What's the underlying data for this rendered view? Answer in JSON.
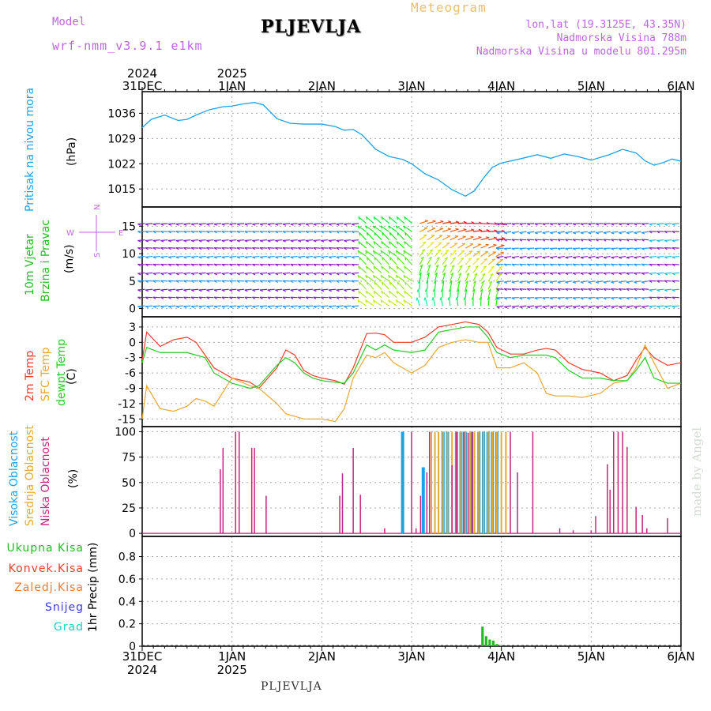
{
  "header": {
    "model_label": "Model",
    "model_name": "wrf-nmm_v3.9.1 e1km",
    "station": "PLJEVLJA",
    "meteogram": "Meteogram",
    "lonlat": "lon,lat (19.3125E, 43.35N)",
    "altitude": "Nadmorska Visina 788m",
    "model_altitude": "Nadmorska Visina u modelu 801.295m"
  },
  "footer": {
    "station": "PLJEVLJA",
    "watermark": "made by Angel"
  },
  "time_axis": {
    "top_years": [
      "2024",
      "2025"
    ],
    "bottom_years": [
      "2024",
      "2025"
    ],
    "days": [
      "31DEC",
      "1JAN",
      "2JAN",
      "3JAN",
      "4JAN",
      "5JAN",
      "6JAN"
    ]
  },
  "panel_labels": {
    "pressure": "Pritisak na nivou mora",
    "pressure_unit": "(hPa)",
    "wind1": "10m Vjetar",
    "wind2": "Brzina i Pravac",
    "wind_unit": "(m/s)",
    "compass_n": "N",
    "compass_s": "S",
    "compass_w": "W",
    "compass_e": "E",
    "temp1": "2m Temp",
    "temp2": "SFC Temp",
    "temp3": "dewpt Temp",
    "temp_unit": "(C)",
    "cloud1": "Visoka Oblacnost",
    "cloud2": "Srednja Oblacnost",
    "cloud3": "Niska Oblacnost",
    "cloud_unit": "(%)",
    "precip_axis": "1hr Precip (mm)",
    "precip_legend": [
      "Ukupna Kisa",
      "Konvek.Kisa",
      "Zaledj.Kisa",
      "Snijeg",
      "Grad"
    ]
  },
  "colors": {
    "pressure": "#1aa3e8",
    "t2m": "#f03a2a",
    "tsfc": "#e8a830",
    "dewpt": "#22cc22",
    "high_cloud": "#1aa3e8",
    "mid_cloud": "#e8a830",
    "low_cloud": "#c8237e",
    "legend": [
      "#22bb22",
      "#f03a2a",
      "#f07a30",
      "#3a3ae8",
      "#22cccc"
    ],
    "label_magenta": "#bb66dd"
  },
  "chart_data": [
    {
      "type": "line",
      "name": "pressure",
      "ylabel": "(hPa)",
      "yticks": [
        1015,
        1022,
        1029,
        1036
      ],
      "ylim": [
        1010,
        1042
      ],
      "xlim": [
        0,
        6
      ],
      "x": [
        0,
        0.1,
        0.25,
        0.4,
        0.5,
        0.6,
        0.75,
        0.9,
        1.0,
        1.1,
        1.25,
        1.35,
        1.5,
        1.65,
        1.8,
        2.0,
        2.15,
        2.25,
        2.35,
        2.45,
        2.6,
        2.75,
        2.9,
        3.0,
        3.15,
        3.3,
        3.45,
        3.6,
        3.7,
        3.8,
        3.9,
        4.0,
        4.2,
        4.4,
        4.55,
        4.7,
        4.85,
        5.0,
        5.2,
        5.35,
        5.5,
        5.6,
        5.7,
        5.8,
        5.9,
        6.0
      ],
      "y": [
        1032,
        1034.3,
        1035.5,
        1034,
        1034.3,
        1035.5,
        1037,
        1037.8,
        1038,
        1038.5,
        1039,
        1038.3,
        1034.5,
        1033.2,
        1033,
        1033,
        1032.3,
        1031.3,
        1031.5,
        1030,
        1026,
        1024,
        1023.2,
        1022,
        1019.2,
        1017.5,
        1014.8,
        1013,
        1014.5,
        1018,
        1021,
        1022.2,
        1023.3,
        1024.5,
        1023.5,
        1024.7,
        1024,
        1023,
        1024.5,
        1026,
        1025,
        1022.8,
        1021.6,
        1022.3,
        1023.3,
        1022.7
      ]
    },
    {
      "type": "scatter",
      "name": "wind",
      "ylabel": "(m/s)",
      "yticks": [
        0,
        5,
        10,
        15
      ],
      "ylim": [
        -1.5,
        18.5
      ],
      "xlim": [
        0,
        6
      ]
    },
    {
      "type": "line",
      "name": "temperature",
      "ylabel": "(C)",
      "yticks": [
        3,
        0,
        -3,
        -6,
        -9,
        -12,
        -15
      ],
      "ylim": [
        -16.5,
        5
      ],
      "xlim": [
        0,
        6
      ],
      "series": [
        {
          "x": [
            0,
            0.05,
            0.2,
            0.35,
            0.5,
            0.6,
            0.7,
            0.8,
            1.0,
            1.2,
            1.3,
            1.5,
            1.6,
            1.7,
            1.8,
            1.9,
            2.0,
            2.15,
            2.25,
            2.35,
            2.5,
            2.6,
            2.7,
            2.8,
            3.0,
            3.15,
            3.3,
            3.45,
            3.6,
            3.75,
            3.85,
            3.95,
            4.1,
            4.25,
            4.4,
            4.5,
            4.6,
            4.75,
            4.9,
            5.1,
            5.25,
            5.4,
            5.5,
            5.6,
            5.7,
            5.85,
            6.0
          ],
          "y": [
            -3.5,
            2,
            -0.8,
            0.5,
            1,
            0,
            -2.5,
            -5,
            -7,
            -7.8,
            -9,
            -5,
            -1.5,
            -2.5,
            -5.5,
            -6.5,
            -7,
            -7.5,
            -8.2,
            -5,
            1.7,
            1.8,
            1.5,
            0,
            0,
            1,
            3,
            3.5,
            4,
            3.5,
            2,
            -1,
            -2.3,
            -2.3,
            -1.5,
            -1.2,
            -1.5,
            -4,
            -5.3,
            -6,
            -7.5,
            -6.5,
            -3.5,
            -1,
            -3,
            -4.5,
            -4
          ]
        },
        {
          "x": [
            0,
            0.05,
            0.2,
            0.35,
            0.5,
            0.6,
            0.7,
            0.8,
            1.0,
            1.2,
            1.3,
            1.5,
            1.6,
            1.7,
            1.8,
            1.9,
            2.0,
            2.15,
            2.25,
            2.35,
            2.5,
            2.6,
            2.7,
            2.8,
            3.0,
            3.15,
            3.3,
            3.45,
            3.6,
            3.75,
            3.85,
            3.95,
            4.1,
            4.25,
            4.4,
            4.5,
            4.6,
            4.75,
            4.9,
            5.1,
            5.25,
            5.4,
            5.5,
            5.6,
            5.7,
            5.85,
            6.0
          ],
          "y": [
            -15,
            -8.5,
            -13,
            -13.5,
            -12.5,
            -11,
            -11.5,
            -12.5,
            -7,
            -8.5,
            -9,
            -12,
            -14,
            -14.5,
            -15,
            -15,
            -15,
            -15.5,
            -13,
            -7,
            -2.5,
            -3,
            -2,
            -4,
            -6,
            -4.5,
            -1,
            0,
            0.5,
            0,
            0,
            -5,
            -5,
            -4,
            -6,
            -10,
            -10.5,
            -10.5,
            -10.8,
            -10,
            -8,
            -7.5,
            -5,
            -0.5,
            -4,
            -9,
            -8
          ]
        },
        {
          "x": [
            0,
            0.05,
            0.2,
            0.35,
            0.5,
            0.6,
            0.7,
            0.8,
            1.0,
            1.2,
            1.3,
            1.5,
            1.6,
            1.7,
            1.8,
            1.9,
            2.0,
            2.15,
            2.25,
            2.35,
            2.5,
            2.6,
            2.7,
            2.8,
            3.0,
            3.15,
            3.3,
            3.45,
            3.6,
            3.75,
            3.85,
            3.95,
            4.1,
            4.25,
            4.4,
            4.5,
            4.6,
            4.75,
            4.9,
            5.1,
            5.25,
            5.4,
            5.5,
            5.6,
            5.7,
            5.85,
            6.0
          ],
          "y": [
            -4,
            -1,
            -2,
            -2,
            -2,
            -2.5,
            -3,
            -6,
            -8,
            -9,
            -8.5,
            -4.5,
            -3,
            -4,
            -6,
            -7,
            -7.5,
            -7.8,
            -8,
            -6,
            -0.5,
            -1.5,
            -0.5,
            -1.5,
            -2,
            -1.5,
            2,
            2.5,
            3,
            3,
            1,
            -2,
            -3,
            -2.5,
            -2.5,
            -2.5,
            -3,
            -5.5,
            -7,
            -7,
            -7.5,
            -7.5,
            -5.5,
            -3,
            -7,
            -8,
            -8
          ]
        }
      ]
    },
    {
      "type": "bar",
      "name": "cloud",
      "ylabel": "(%)",
      "yticks": [
        0,
        25,
        50,
        75,
        100
      ],
      "ylim": [
        -3,
        105
      ],
      "xlim": [
        0,
        6
      ],
      "series": [
        {
          "x": [
            2.9,
            3.13,
            3.35,
            3.4,
            3.5,
            3.55,
            3.6,
            3.66,
            3.75,
            3.8,
            3.85,
            3.9,
            3.95
          ],
          "values": [
            100,
            65,
            100,
            100,
            100,
            100,
            100,
            100,
            100,
            100,
            100,
            100,
            100
          ]
        },
        {
          "x": [
            3.22,
            3.26,
            3.3,
            3.35,
            3.4,
            3.45,
            3.5,
            3.55,
            3.6,
            3.65,
            3.7,
            3.75,
            3.8,
            3.85,
            3.9,
            3.95,
            4.0,
            4.05
          ],
          "values": [
            100,
            100,
            100,
            100,
            100,
            100,
            100,
            100,
            100,
            100,
            100,
            100,
            100,
            100,
            100,
            100,
            100,
            100
          ]
        },
        {
          "x": [
            0.87,
            0.9,
            1.04,
            1.08,
            1.22,
            1.25,
            1.38,
            2.2,
            2.23,
            2.35,
            2.43,
            2.7,
            3.0,
            3.05,
            3.1,
            3.17,
            3.2,
            3.45,
            3.5,
            3.58,
            3.63,
            3.68,
            4.1,
            4.18,
            4.35,
            4.65,
            4.8,
            5.0,
            5.05,
            5.18,
            5.21,
            5.25,
            5.3,
            5.35,
            5.4,
            5.5,
            5.57,
            5.62,
            5.85
          ],
          "values": [
            63,
            84,
            100,
            100,
            84,
            84,
            37,
            37,
            59,
            84,
            38,
            5,
            100,
            5,
            37,
            60,
            100,
            67,
            100,
            100,
            99,
            100,
            100,
            60,
            100,
            5,
            3,
            3,
            17,
            68,
            43,
            100,
            100,
            100,
            85,
            26,
            18,
            5,
            15
          ]
        }
      ]
    },
    {
      "type": "bar",
      "name": "precipitation",
      "ylabel": "1hr Precip (mm)",
      "yticks": [
        0,
        0.2,
        0.4,
        0.6,
        0.8
      ],
      "ylim": [
        0,
        0.98
      ],
      "xlim": [
        0,
        6
      ],
      "series": [
        {
          "x": [
            3.79,
            3.83,
            3.87,
            3.91,
            3.95,
            3.99
          ],
          "values": [
            0.175,
            0.09,
            0.06,
            0.05,
            0.02,
            0.01
          ]
        }
      ]
    }
  ]
}
